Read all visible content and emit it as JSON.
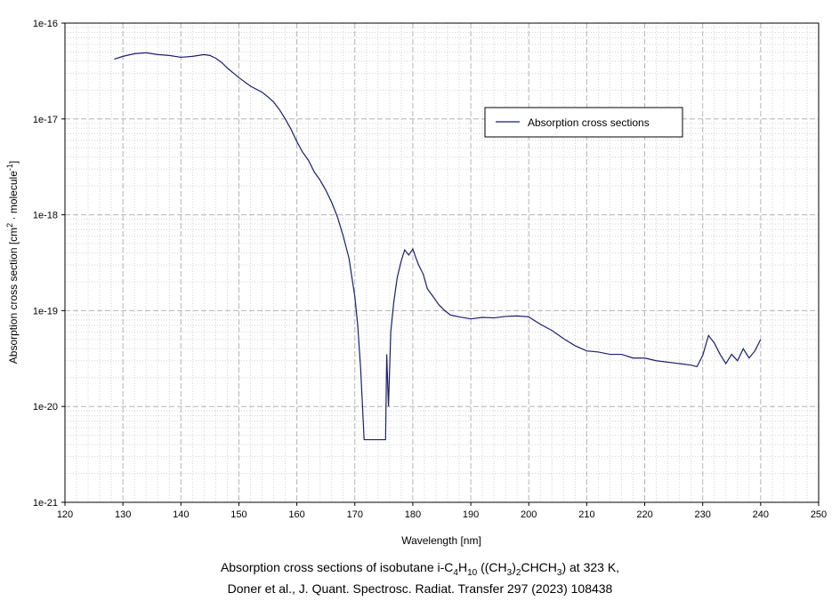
{
  "chart_data": {
    "type": "line",
    "title": "",
    "xlabel": "Wavelength [nm]",
    "ylabel_parts": [
      "Absorption cross section [cm",
      "2",
      " · molecule",
      "-1",
      "]"
    ],
    "xlim": [
      120,
      250
    ],
    "ylim": [
      1e-21,
      1e-16
    ],
    "yscale": "log",
    "grid": true,
    "x_tick_labels": [
      "120",
      "130",
      "140",
      "150",
      "160",
      "170",
      "180",
      "190",
      "200",
      "210",
      "220",
      "230",
      "240",
      "250"
    ],
    "y_tick_labels": [
      "1e-21",
      "1e-20",
      "1e-19",
      "1e-18",
      "1e-17",
      "1e-16"
    ],
    "legend_position": "upper-right",
    "line_color": "#1a1f6e",
    "series": [
      {
        "name": "Absorption cross sections",
        "x": [
          128.5,
          130,
          132,
          134,
          136,
          138,
          140,
          142,
          144,
          145,
          146,
          147,
          148,
          150,
          152,
          154,
          155,
          156,
          157,
          158,
          159,
          160,
          161,
          162,
          163,
          164,
          165,
          166,
          167,
          168,
          169,
          170,
          170.5,
          171,
          171.4,
          171.6,
          175.3,
          175.5,
          175.8,
          176.2,
          176.7,
          177.3,
          178,
          178.6,
          179.3,
          180,
          180.5,
          181,
          181.8,
          182.5,
          183.5,
          184.5,
          185.5,
          186.5,
          188,
          190,
          192,
          194,
          196,
          198,
          200,
          202,
          204,
          206,
          208,
          210,
          212,
          214,
          216,
          218,
          220,
          222,
          224,
          226,
          228,
          229,
          230,
          231,
          232,
          233,
          234,
          235,
          236,
          237,
          238,
          239,
          240
        ],
        "y": [
          4.2e-17,
          4.5e-17,
          4.8e-17,
          4.9e-17,
          4.7e-17,
          4.6e-17,
          4.4e-17,
          4.5e-17,
          4.7e-17,
          4.6e-17,
          4.3e-17,
          3.9e-17,
          3.4e-17,
          2.7e-17,
          2.2e-17,
          1.9e-17,
          1.7e-17,
          1.5e-17,
          1.25e-17,
          1e-17,
          7.8e-18,
          5.8e-18,
          4.5e-18,
          3.7e-18,
          2.8e-18,
          2.3e-18,
          1.8e-18,
          1.35e-18,
          9.5e-19,
          6e-19,
          3.5e-19,
          1.4e-19,
          7e-20,
          2.5e-20,
          8e-21,
          4.5e-21,
          4.5e-21,
          3.5e-20,
          1e-20,
          6e-20,
          1.2e-19,
          2.2e-19,
          3.3e-19,
          4.3e-19,
          3.8e-19,
          4.4e-19,
          3.6e-19,
          3e-19,
          2.4e-19,
          1.7e-19,
          1.4e-19,
          1.15e-19,
          1e-19,
          9e-20,
          8.6e-20,
          8.2e-20,
          8.5e-20,
          8.4e-20,
          8.7e-20,
          8.8e-20,
          8.6e-20,
          7.2e-20,
          6.2e-20,
          5.1e-20,
          4.3e-20,
          3.8e-20,
          3.7e-20,
          3.5e-20,
          3.5e-20,
          3.2e-20,
          3.2e-20,
          3e-20,
          2.9e-20,
          2.8e-20,
          2.7e-20,
          2.6e-20,
          3.4e-20,
          5.5e-20,
          4.6e-20,
          3.5e-20,
          2.8e-20,
          3.5e-20,
          3e-20,
          4e-20,
          3.2e-20,
          3.8e-20,
          5e-20
        ]
      }
    ]
  },
  "caption": {
    "line1_parts": [
      "Absorption cross sections of isobutane i-C",
      "4",
      "H",
      "10",
      " ((CH",
      "3",
      ")",
      "2",
      "CHCH",
      "3",
      ") at 323 K,"
    ],
    "line2": "Doner et al., J. Quant. Spectrosc. Radiat. Transfer 297 (2023) 108438"
  }
}
